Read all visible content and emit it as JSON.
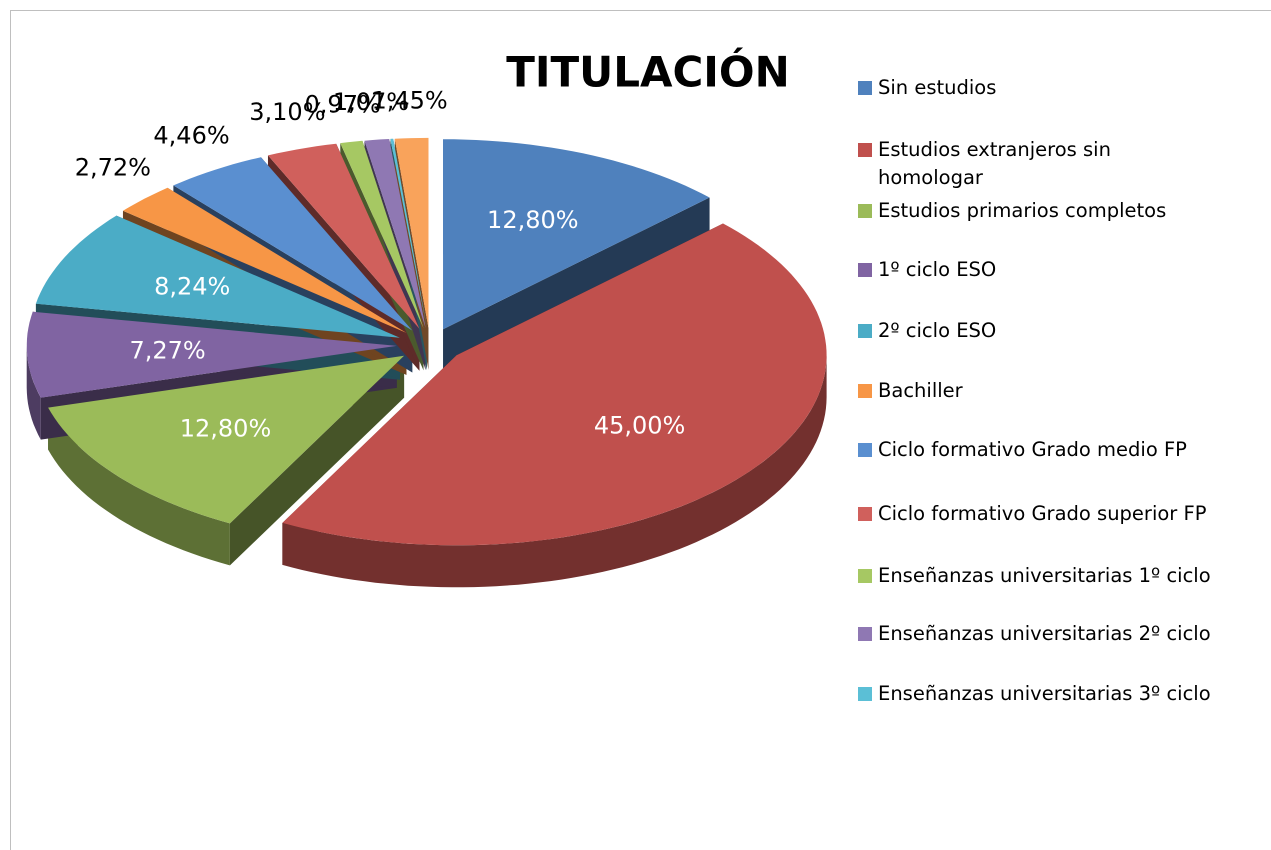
{
  "chart_data": {
    "type": "pie3d",
    "title": "TITULACIÓN",
    "categories": [
      "Sin estudios",
      "Estudios extranjeros sin homologar",
      "Estudios primarios completos",
      "1º ciclo ESO",
      "2º ciclo ESO",
      "Bachiller",
      "Ciclo formativo Grado medio FP",
      "Ciclo formativo Grado superior FP",
      "Enseñanzas universitarias 1º ciclo",
      "Enseñanzas universitarias 2º ciclo",
      "Enseñanzas universitarias 3º ciclo",
      null
    ],
    "values": [
      12.8,
      45,
      12.8,
      7.27,
      8.24,
      2.72,
      4.46,
      3.1,
      0.97,
      1.07,
      0.12,
      1.45
    ],
    "value_labels": [
      "12,80%",
      "45,00%",
      "12,80%",
      "7,27%",
      "8,24%",
      "2,72%",
      "4,46%",
      "3,10%",
      "0,97%",
      "1,07%",
      null,
      "1,45%"
    ],
    "colors": [
      "#4f81bd",
      "#c0504d",
      "#9bbb59",
      "#8064a2",
      "#4bacc6",
      "#f79646",
      "#5a8fd0",
      "#d0605c",
      "#a6c863",
      "#8f78b3",
      "#5bbfd6",
      "#f9a35b"
    ],
    "legend": "right"
  }
}
